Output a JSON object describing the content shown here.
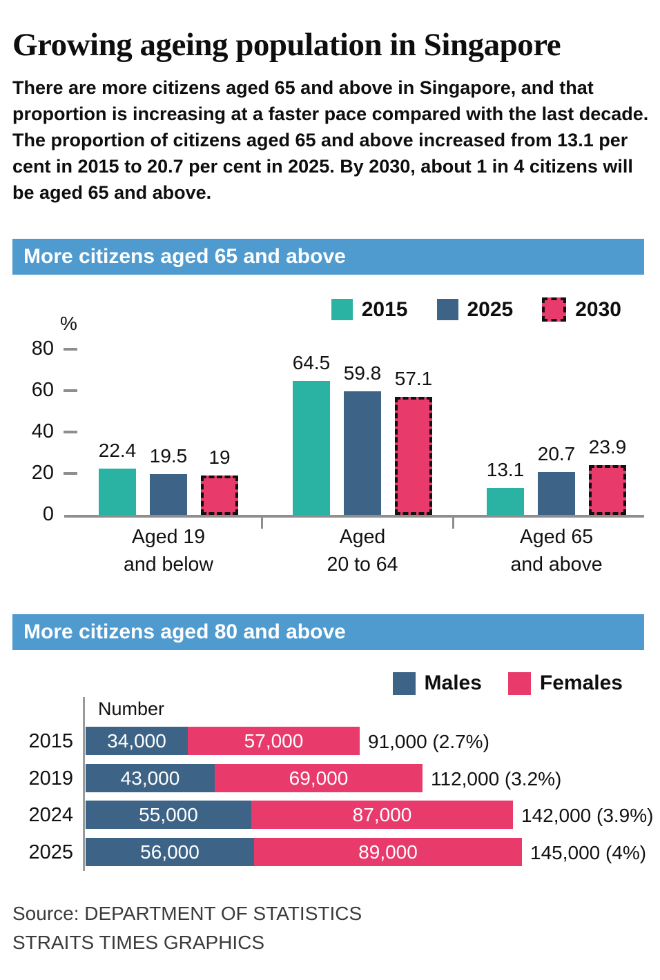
{
  "title": "Growing ageing population in Singapore",
  "intro": "There are more citizens aged 65 and above in Singapore, and that proportion is increasing at a faster pace compared with the last decade. The proportion of citizens aged 65 and above increased from 13.1 per cent in 2015 to 20.7 per cent in 2025. By 2030, about 1 in 4 citizens will be aged 65 and above.",
  "source": {
    "line1": "Source: DEPARTMENT OF STATISTICS",
    "line2": "STRAITS TIMES GRAPHICS"
  },
  "colors": {
    "header_bg": "#4f9bd0",
    "teal_2015": "#2ab3a3",
    "blue_2025": "#3d6486",
    "pink_2030": "#e83a6b",
    "males": "#3d6486",
    "females": "#e83a6b",
    "axis_gray": "#8e8e8e",
    "text": "#111111",
    "source_text": "#3a3a3a"
  },
  "chart_data": [
    {
      "type": "bar",
      "title": "More citizens aged 65 and above",
      "ylabel": "%",
      "ylim": [
        0,
        80
      ],
      "y_ticks": [
        80,
        60,
        40,
        20,
        0
      ],
      "grid": false,
      "legend_position": "top-right",
      "categories": [
        "Aged 19 and below",
        "Aged 20 to 64",
        "Aged 65 and above"
      ],
      "category_lines": [
        [
          "Aged 19",
          "and below"
        ],
        [
          "Aged",
          "20 to 64"
        ],
        [
          "Aged 65",
          "and above"
        ]
      ],
      "series": [
        {
          "name": "2015",
          "color": "#2ab3a3",
          "dashed": false,
          "values": [
            22.4,
            64.5,
            13.1
          ],
          "labels": [
            "22.4",
            "64.5",
            "13.1"
          ]
        },
        {
          "name": "2025",
          "color": "#3d6486",
          "dashed": false,
          "values": [
            19.5,
            59.8,
            20.7
          ],
          "labels": [
            "19.5",
            "59.8",
            "20.7"
          ]
        },
        {
          "name": "2030",
          "color": "#e83a6b",
          "dashed": true,
          "values": [
            19,
            57.1,
            23.9
          ],
          "labels": [
            "19",
            "57.1",
            "23.9"
          ]
        }
      ]
    },
    {
      "type": "bar",
      "orientation": "horizontal",
      "stacked": true,
      "title": "More citizens aged 80 and above",
      "value_axis_label": "Number",
      "legend_position": "top-right",
      "categories": [
        "2015",
        "2019",
        "2024",
        "2025"
      ],
      "series": [
        {
          "name": "Males",
          "color": "#3d6486",
          "values": [
            34000,
            43000,
            55000,
            56000
          ],
          "labels": [
            "34,000",
            "43,000",
            "55,000",
            "56,000"
          ]
        },
        {
          "name": "Females",
          "color": "#e83a6b",
          "values": [
            57000,
            69000,
            87000,
            89000
          ],
          "labels": [
            "57,000",
            "69,000",
            "87,000",
            "89,000"
          ]
        }
      ],
      "totals": [
        91000,
        112000,
        142000,
        145000
      ],
      "total_labels": [
        "91,000 (2.7%)",
        "112,000 (3.2%)",
        "142,000 (3.9%)",
        "145,000 (4%)"
      ]
    }
  ]
}
